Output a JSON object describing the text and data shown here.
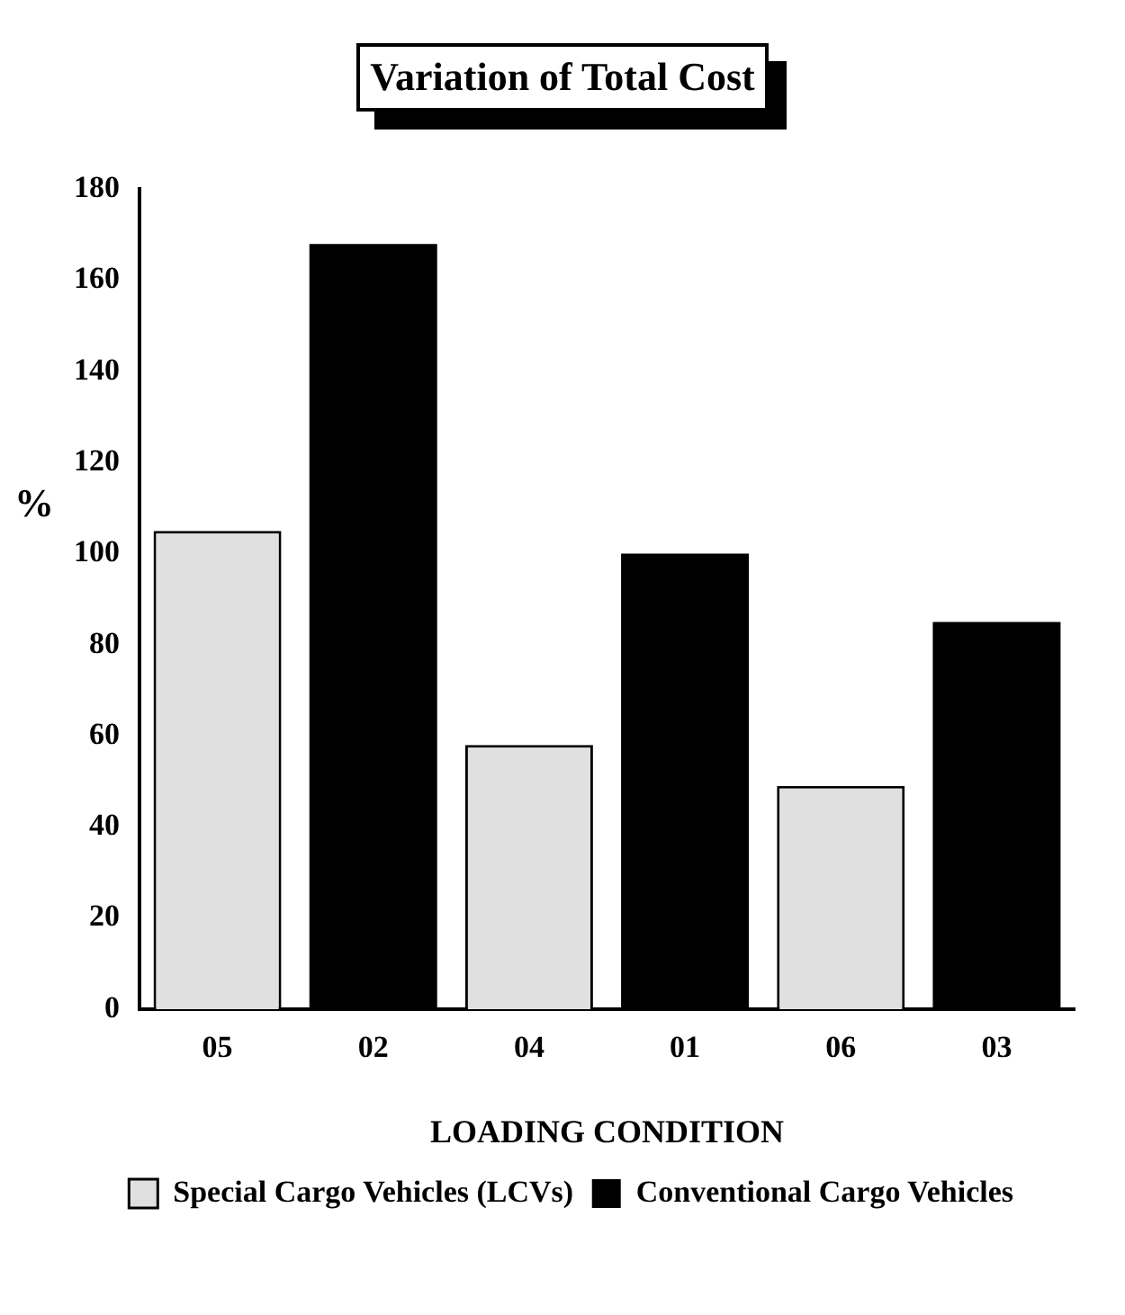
{
  "chart_data": {
    "type": "bar",
    "title": "Variation of Total Cost",
    "xlabel": "LOADING CONDITION",
    "ylabel": "%",
    "categories": [
      "05",
      "02",
      "04",
      "01",
      "06",
      "03"
    ],
    "series": [
      {
        "name": "Special Cargo Vehicles (LCVs)",
        "color": "#e0e0e0",
        "values": [
          105,
          null,
          58,
          null,
          49,
          null
        ]
      },
      {
        "name": "Conventional Cargo Vehicles",
        "color": "#000000",
        "values": [
          null,
          168,
          null,
          100,
          null,
          85
        ]
      }
    ],
    "ylim": [
      0,
      180
    ],
    "yticks": [
      0,
      20,
      40,
      60,
      80,
      100,
      120,
      140,
      160,
      180
    ],
    "grid": false,
    "legend": "bottom"
  }
}
